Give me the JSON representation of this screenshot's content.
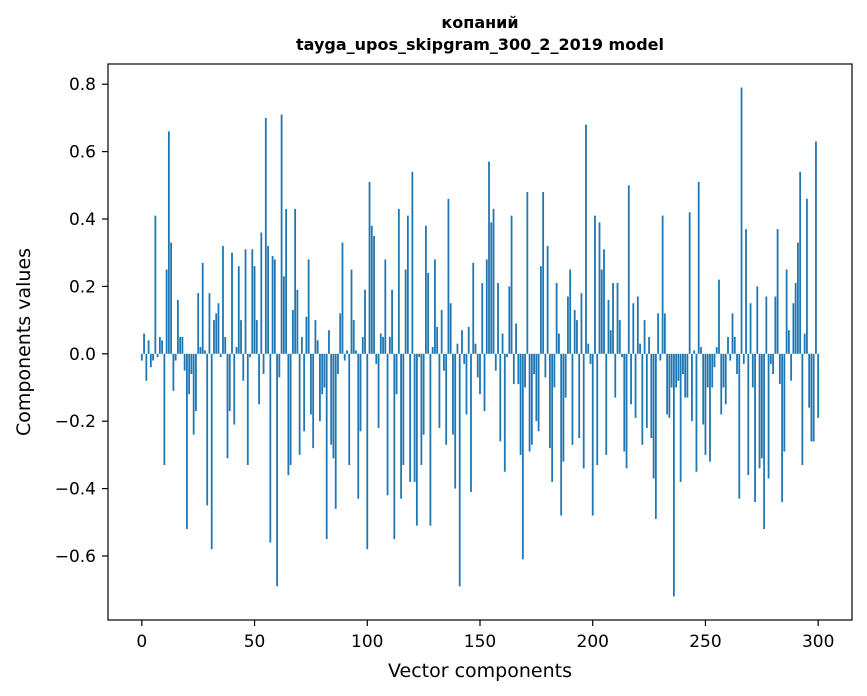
{
  "chart_data": {
    "type": "bar",
    "title_line1": "копаний",
    "title_line2": "tayga_upos_skipgram_300_2_2019 model",
    "xlabel": "Vector components",
    "ylabel": "Components values",
    "xlim": [
      -15,
      315
    ],
    "ylim": [
      -0.79,
      0.86
    ],
    "x_ticks": [
      0,
      50,
      100,
      150,
      200,
      250,
      300
    ],
    "x_tick_labels": [
      "0",
      "50",
      "100",
      "150",
      "200",
      "250",
      "300"
    ],
    "y_ticks": [
      -0.6,
      -0.4,
      -0.2,
      0.0,
      0.2,
      0.4,
      0.6,
      0.8
    ],
    "y_tick_labels": [
      "−0.6",
      "−0.4",
      "−0.2",
      "0.0",
      "0.2",
      "0.4",
      "0.6",
      "0.8"
    ],
    "bar_color": "#1f77b4",
    "grid": false,
    "values": [
      -0.02,
      0.06,
      -0.08,
      0.04,
      -0.04,
      -0.02,
      0.41,
      -0.01,
      0.05,
      0.04,
      -0.33,
      0.25,
      0.66,
      0.33,
      -0.11,
      -0.02,
      0.16,
      0.05,
      0.05,
      -0.05,
      -0.52,
      -0.12,
      -0.06,
      -0.24,
      -0.17,
      0.18,
      0.02,
      0.27,
      0.01,
      -0.45,
      0.18,
      -0.58,
      0.1,
      0.12,
      0.15,
      -0.01,
      0.32,
      0.05,
      -0.31,
      -0.17,
      0.3,
      -0.21,
      0.02,
      0.26,
      0.1,
      -0.08,
      0.31,
      -0.33,
      -0.01,
      0.31,
      0.26,
      0.1,
      -0.15,
      0.36,
      -0.06,
      0.7,
      0.32,
      -0.56,
      0.29,
      0.28,
      -0.69,
      -0.07,
      0.71,
      0.23,
      0.43,
      -0.36,
      -0.33,
      0.13,
      0.43,
      0.19,
      -0.3,
      0.05,
      -0.23,
      0.11,
      0.28,
      -0.18,
      -0.28,
      0.1,
      0.04,
      -0.2,
      -0.12,
      -0.1,
      -0.55,
      0.07,
      -0.27,
      -0.31,
      -0.46,
      -0.06,
      0.12,
      0.33,
      -0.02,
      0.01,
      -0.33,
      0.25,
      0.1,
      0.01,
      -0.43,
      -0.23,
      0.05,
      0.19,
      -0.58,
      0.51,
      0.38,
      0.35,
      -0.03,
      -0.22,
      0.06,
      0.05,
      0.28,
      -0.42,
      0.05,
      0.19,
      -0.55,
      -0.12,
      0.43,
      -0.43,
      -0.33,
      0.25,
      0.41,
      -0.38,
      0.54,
      -0.38,
      -0.51,
      -0.01,
      -0.33,
      -0.24,
      0.38,
      0.24,
      -0.51,
      0.02,
      0.28,
      0.08,
      -0.22,
      0.13,
      -0.05,
      -0.27,
      0.46,
      0.15,
      -0.24,
      -0.4,
      0.03,
      -0.69,
      0.07,
      -0.03,
      -0.18,
      0.08,
      -0.41,
      0.27,
      0.03,
      -0.07,
      -0.12,
      0.21,
      -0.17,
      0.28,
      0.57,
      0.39,
      0.43,
      -0.05,
      0.21,
      -0.26,
      0.06,
      -0.35,
      -0.01,
      0.2,
      0.41,
      -0.09,
      0.09,
      -0.09,
      -0.3,
      -0.61,
      -0.1,
      0.48,
      -0.29,
      -0.27,
      -0.06,
      -0.2,
      -0.23,
      0.26,
      0.48,
      -0.07,
      0.32,
      -0.28,
      -0.38,
      -0.1,
      0.21,
      0.06,
      -0.48,
      -0.32,
      -0.13,
      0.17,
      0.25,
      -0.27,
      0.13,
      0.1,
      -0.25,
      0.18,
      -0.34,
      0.68,
      0.03,
      -0.03,
      -0.48,
      0.41,
      -0.33,
      0.39,
      0.25,
      0.31,
      -0.3,
      0.16,
      0.07,
      0.21,
      -0.13,
      0.21,
      0.1,
      -0.01,
      -0.29,
      -0.34,
      0.5,
      -0.15,
      0.15,
      -0.19,
      0.17,
      0.03,
      -0.27,
      0.1,
      -0.22,
      0.05,
      -0.25,
      -0.37,
      -0.49,
      0.12,
      -0.02,
      0.41,
      0.12,
      -0.18,
      -0.19,
      -0.1,
      -0.72,
      -0.1,
      -0.08,
      -0.38,
      -0.06,
      -0.13,
      -0.13,
      0.42,
      -0.2,
      0.01,
      -0.35,
      0.51,
      0.02,
      -0.21,
      -0.3,
      -0.1,
      -0.32,
      -0.1,
      -0.04,
      0.02,
      0.22,
      -0.18,
      -0.1,
      -0.15,
      0.05,
      -0.02,
      0.12,
      0.05,
      -0.06,
      -0.43,
      0.79,
      -0.03,
      0.37,
      -0.36,
      0.15,
      -0.1,
      -0.44,
      0.2,
      -0.34,
      -0.31,
      -0.52,
      0.17,
      -0.37,
      -0.03,
      -0.06,
      0.17,
      0.37,
      -0.09,
      -0.44,
      -0.29,
      0.25,
      0.07,
      -0.08,
      0.15,
      0.21,
      0.33,
      0.54,
      -0.33,
      0.06,
      0.46,
      -0.16,
      -0.26,
      -0.26,
      0.63,
      -0.19
    ]
  }
}
